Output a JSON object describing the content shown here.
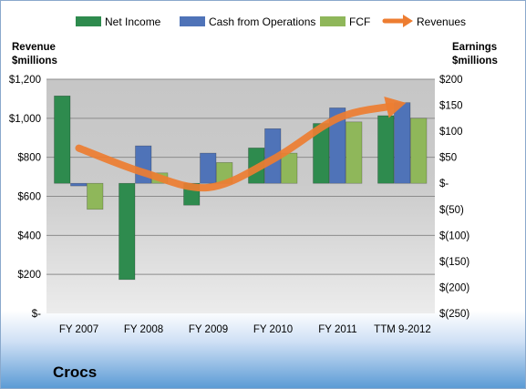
{
  "chart_data": {
    "type": "bar",
    "categories": [
      "FY 2007",
      "FY 2008",
      "FY 2009",
      "FY 2010",
      "FY 2011",
      "TTM 9-2012"
    ],
    "left_axis": {
      "title_line1": "Revenue",
      "title_line2": "$millions",
      "ticks": [
        "$1,200",
        "$1,000",
        "$800",
        "$600",
        "$400",
        "$200",
        "$-"
      ],
      "tick_values": [
        1200,
        1000,
        800,
        600,
        400,
        200,
        0
      ],
      "ylim": [
        0,
        1200
      ]
    },
    "right_axis": {
      "title_line1": "Earnings",
      "title_line2": "$millions",
      "ticks": [
        "$200",
        "$150",
        "$100",
        "$50",
        "$-",
        "$(50)",
        "$(100)",
        "$(150)",
        "$(200)",
        "$(250)"
      ],
      "tick_values": [
        200,
        150,
        100,
        50,
        0,
        -50,
        -100,
        -150,
        -200,
        -250
      ],
      "ylim": [
        -250,
        200
      ]
    },
    "series": [
      {
        "name": "Net Income",
        "axis": "right",
        "color": "#2e8b4e",
        "values": [
          168,
          -185,
          -42,
          68,
          115,
          130
        ]
      },
      {
        "name": "Cash from Operations",
        "axis": "right",
        "color": "#4f73b8",
        "values": [
          -5,
          72,
          58,
          105,
          145,
          155
        ]
      },
      {
        "name": "FCF",
        "axis": "right",
        "color": "#8fb75a",
        "values": [
          -50,
          20,
          40,
          58,
          118,
          125
        ]
      },
      {
        "name": "Revenues",
        "axis": "left",
        "type": "line",
        "color": "#ed7d31",
        "values": [
          847,
          722,
          645,
          790,
          1000,
          1075
        ]
      }
    ],
    "grid": true,
    "legend_position": "top",
    "company": "Crocs"
  }
}
